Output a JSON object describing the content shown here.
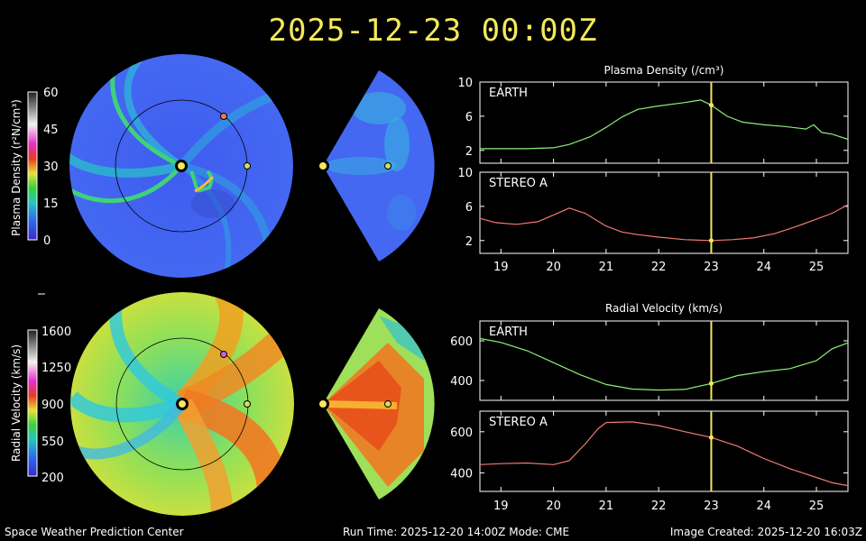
{
  "title": "2025-12-23  00:00Z",
  "footer": {
    "left": "Space Weather Prediction Center",
    "middle": "Run Time: 2025-12-20 14:00Z  Mode: CME",
    "right": "Image Created: 2025-12-20 16:03Z"
  },
  "colors": {
    "title": "#f4e85c",
    "earth_line": "#8cf07a",
    "stereo_line": "#f07a72",
    "current_time_marker": "#f4e85c"
  },
  "colorbars": [
    {
      "label": "Plasma Density (r²N/cm³)",
      "ticks": [
        "60",
        "45",
        "30",
        "15",
        "0"
      ],
      "range": [
        0,
        60
      ]
    },
    {
      "label": "Radial Velocity (km/s)",
      "ticks": [
        "1600",
        "1250",
        "900",
        "550",
        "200"
      ],
      "range": [
        200,
        1600
      ]
    }
  ],
  "chart_data": [
    {
      "type": "line",
      "title": "Plasma Density (/cm³)",
      "x_tick_labels": [
        "19",
        "20",
        "21",
        "22",
        "23",
        "24",
        "25"
      ],
      "xlim": [
        18.6,
        25.6
      ],
      "current_time": 23,
      "panels": [
        {
          "name": "EARTH",
          "ylim": [
            0.5,
            10
          ],
          "y_tick_labels": [
            "10",
            "6",
            "2"
          ],
          "x": [
            18.6,
            19.0,
            19.5,
            20.0,
            20.3,
            20.7,
            21.0,
            21.3,
            21.6,
            22.0,
            22.5,
            22.8,
            23.0,
            23.3,
            23.6,
            24.0,
            24.4,
            24.8,
            24.95,
            25.1,
            25.3,
            25.6
          ],
          "y": [
            2.2,
            2.2,
            2.2,
            2.3,
            2.7,
            3.6,
            4.7,
            5.9,
            6.8,
            7.2,
            7.6,
            7.9,
            7.3,
            6.0,
            5.3,
            5.0,
            4.8,
            4.5,
            5.0,
            4.1,
            3.9,
            3.3
          ]
        },
        {
          "name": "STEREO A",
          "ylim": [
            0.5,
            10
          ],
          "y_tick_labels": [
            "10",
            "6",
            "2"
          ],
          "x": [
            18.6,
            18.9,
            19.3,
            19.7,
            20.0,
            20.3,
            20.6,
            21.0,
            21.3,
            21.6,
            22.0,
            22.5,
            23.0,
            23.4,
            23.8,
            24.2,
            24.6,
            25.0,
            25.3,
            25.6
          ],
          "y": [
            4.6,
            4.1,
            3.9,
            4.2,
            5.0,
            5.8,
            5.2,
            3.7,
            3.0,
            2.7,
            2.4,
            2.1,
            2.0,
            2.1,
            2.3,
            2.8,
            3.6,
            4.5,
            5.2,
            6.2
          ]
        }
      ]
    },
    {
      "type": "line",
      "title": "Radial Velocity (km/s)",
      "x_tick_labels": [
        "19",
        "20",
        "21",
        "22",
        "23",
        "24",
        "25"
      ],
      "xlim": [
        18.6,
        25.6
      ],
      "current_time": 23,
      "panels": [
        {
          "name": "EARTH",
          "ylim": [
            300,
            700
          ],
          "y_tick_labels": [
            "600",
            "400"
          ],
          "x": [
            18.6,
            19.0,
            19.5,
            20.0,
            20.5,
            21.0,
            21.5,
            22.0,
            22.5,
            23.0,
            23.5,
            24.0,
            24.5,
            25.0,
            25.3,
            25.6
          ],
          "y": [
            612,
            592,
            550,
            490,
            430,
            380,
            357,
            352,
            355,
            385,
            425,
            445,
            460,
            500,
            560,
            590
          ]
        },
        {
          "name": "STEREO A",
          "ylim": [
            310,
            700
          ],
          "y_tick_labels": [
            "600",
            "400"
          ],
          "x": [
            18.6,
            19.0,
            19.5,
            20.0,
            20.3,
            20.6,
            20.85,
            21.0,
            21.5,
            22.0,
            22.5,
            23.0,
            23.5,
            24.0,
            24.5,
            25.0,
            25.3,
            25.6
          ],
          "y": [
            440,
            445,
            448,
            440,
            460,
            540,
            615,
            645,
            648,
            630,
            600,
            572,
            530,
            470,
            420,
            378,
            352,
            338
          ]
        }
      ]
    }
  ]
}
